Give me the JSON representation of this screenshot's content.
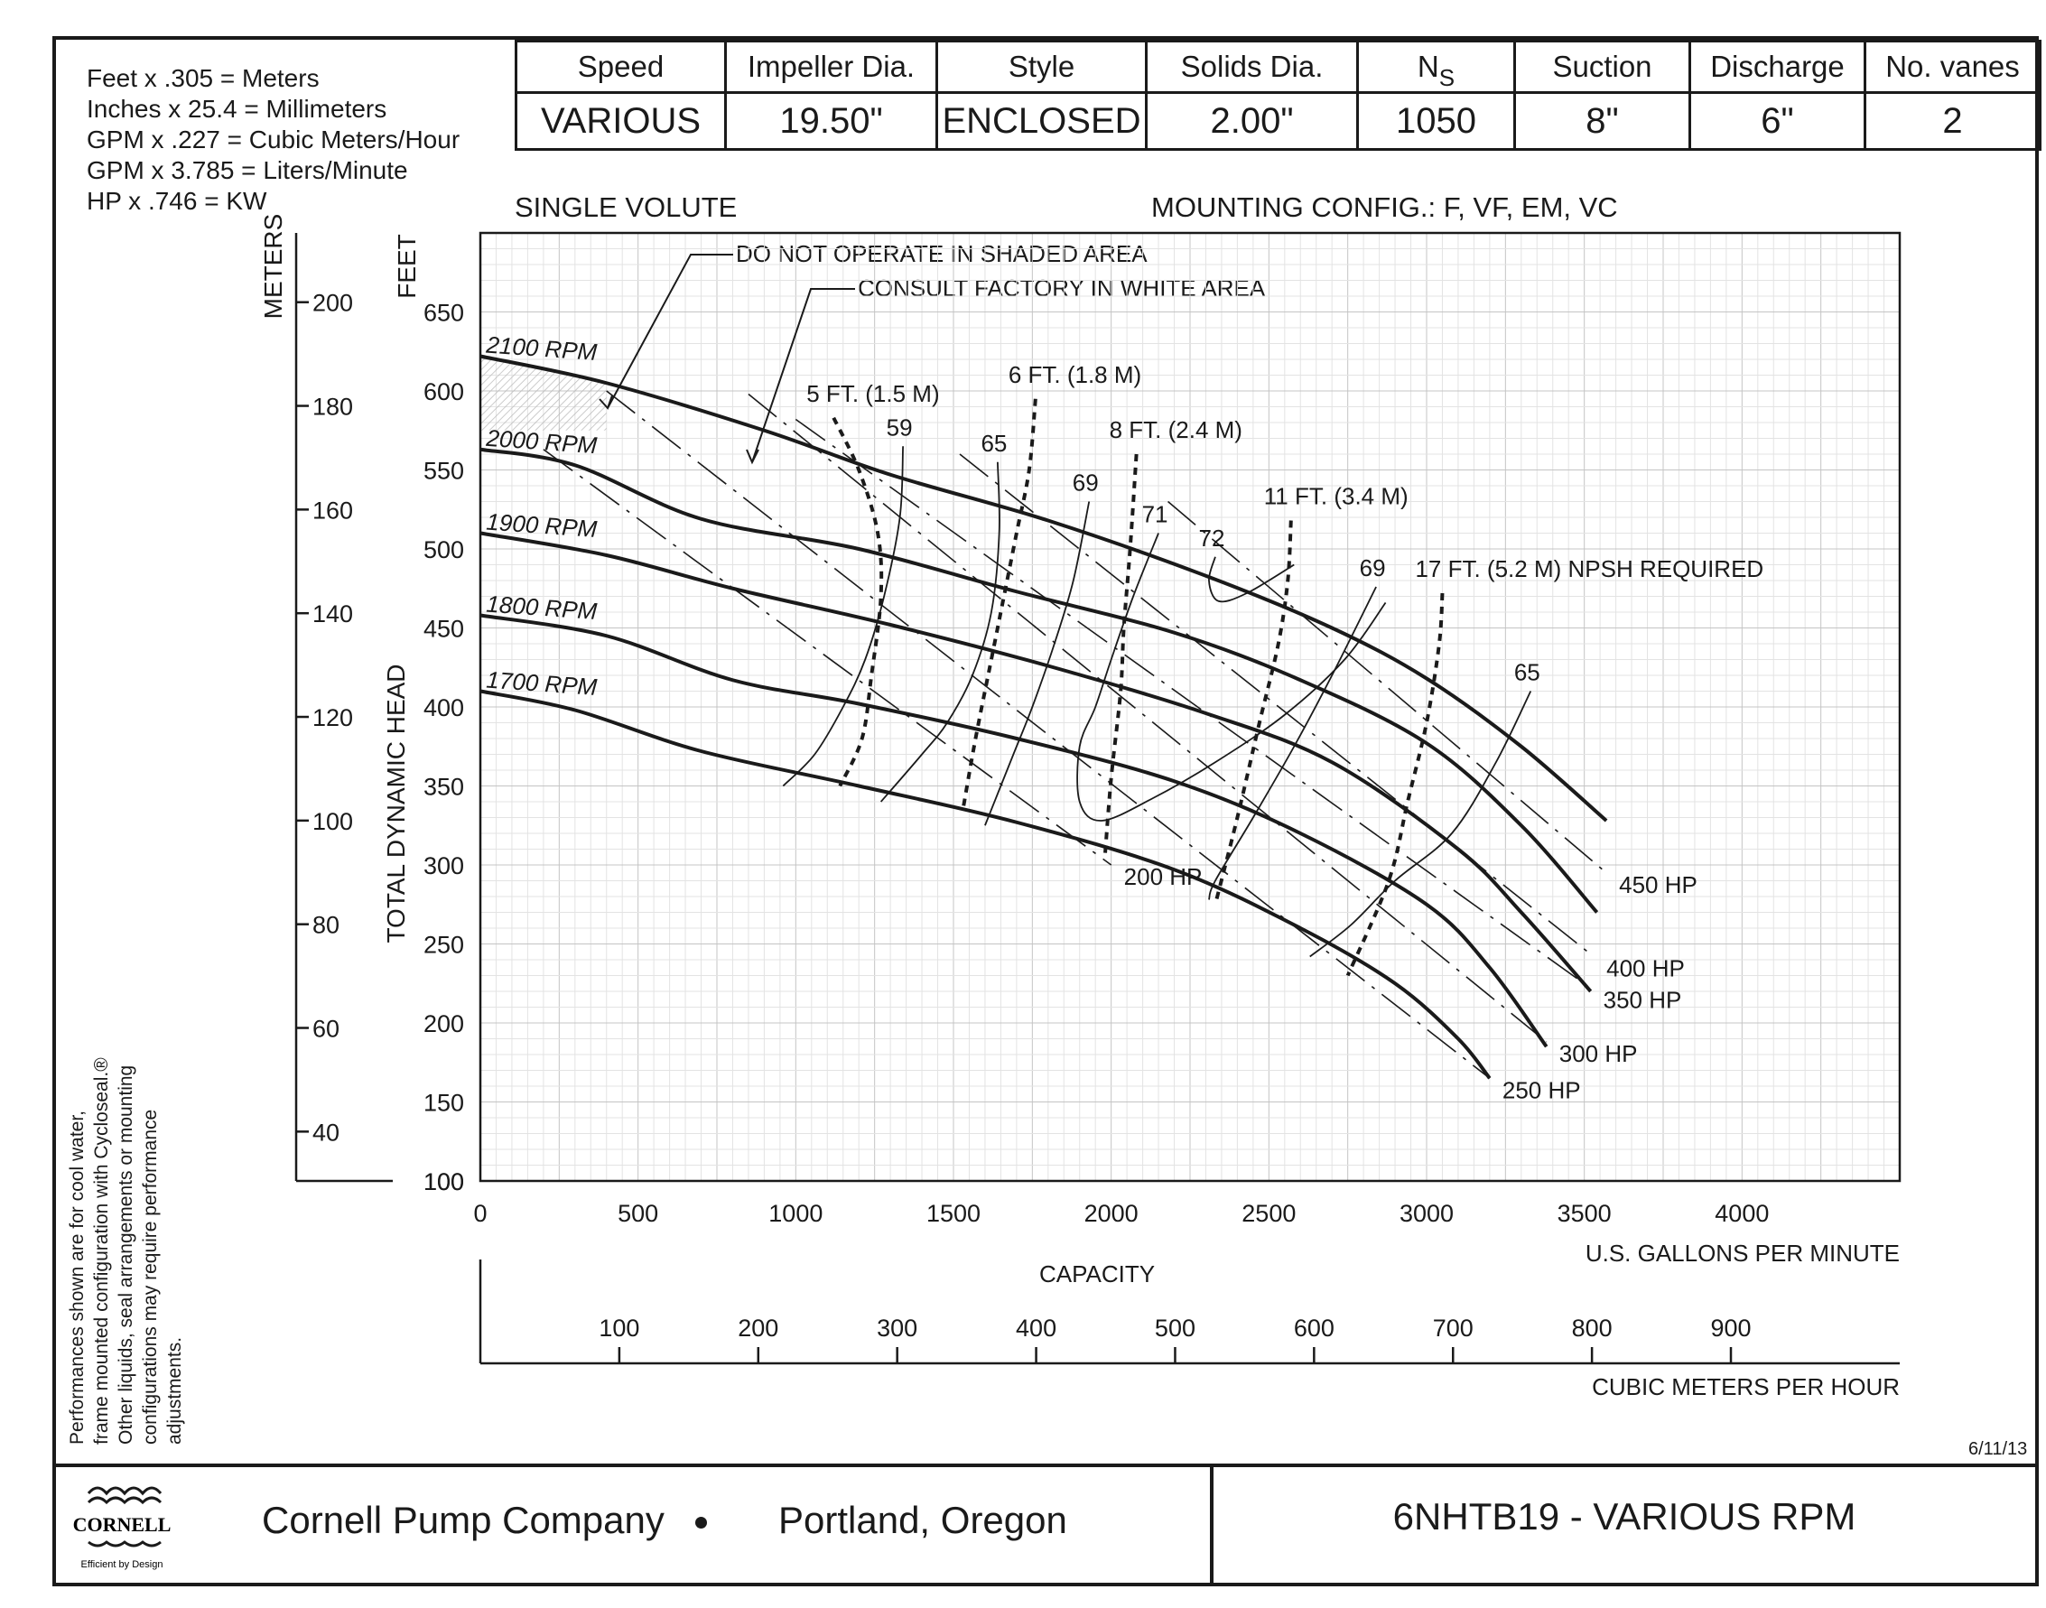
{
  "conversions": [
    "Feet x .305 = Meters",
    "Inches x 25.4 = Millimeters",
    "GPM x .227 = Cubic Meters/Hour",
    "GPM x 3.785 = Liters/Minute",
    "HP x .746 = KW"
  ],
  "specs": {
    "headers": [
      "Speed",
      "Impeller Dia.",
      "Style",
      "Solids Dia.",
      "N",
      "Suction",
      "Discharge",
      "No. vanes"
    ],
    "ns_subscript": "S",
    "values": [
      "VARIOUS",
      "19.50\"",
      "ENCLOSED",
      "2.00\"",
      "1050",
      "8\"",
      "6\"",
      "2"
    ]
  },
  "volute": "SINGLE VOLUTE",
  "mounting": "MOUNTING CONFIG.:   F,  VF,  EM,  VC",
  "note": [
    "Performances shown are for cool water,",
    "frame mounted configuration with Cycloseal.®",
    "Other liquids, seal arrangements or mounting",
    "configurations may require performance",
    "adjustments."
  ],
  "date": "6/11/13",
  "footer": {
    "company": "Cornell Pump Company",
    "place": "Portland, Oregon",
    "model": "6NHTB19 - VARIOUS RPM",
    "logo_text": "CORNELL",
    "logo_tagline": "Efficient by Design"
  },
  "chart_data": {
    "type": "line",
    "xlabel": "U.S. GALLONS PER MINUTE",
    "ylabel": "TOTAL DYNAMIC HEAD",
    "y_unit_feet": "FEET",
    "y_unit_meters": "METERS",
    "capacity_label": "CAPACITY",
    "x2label": "CUBIC METERS PER HOUR",
    "xlim": [
      0,
      4500
    ],
    "ylim": [
      100,
      700
    ],
    "x_ticks": [
      0,
      500,
      1000,
      1500,
      2000,
      2500,
      3000,
      3500,
      4000
    ],
    "y_ticks": [
      100,
      150,
      200,
      250,
      300,
      350,
      400,
      450,
      500,
      550,
      600,
      650
    ],
    "meter_ticks": [
      40,
      60,
      80,
      100,
      120,
      140,
      160,
      180,
      200
    ],
    "m3h_ticks": [
      100,
      200,
      300,
      400,
      500,
      600,
      700,
      800,
      900
    ],
    "grid": true,
    "annotations": [
      "DO NOT OPERATE IN SHADED AREA",
      "CONSULT FACTORY IN WHITE AREA"
    ],
    "speed_curves": [
      {
        "name": "2100 RPM",
        "x": [
          0,
          400,
          900,
          1300,
          1800,
          2300,
          2700,
          3000,
          3300,
          3570
        ],
        "y": [
          622,
          605,
          575,
          547,
          518,
          483,
          450,
          418,
          375,
          328
        ]
      },
      {
        "name": "2000 RPM",
        "x": [
          0,
          300,
          700,
          1200,
          1700,
          2200,
          2600,
          3000,
          3300,
          3540
        ],
        "y": [
          563,
          553,
          519,
          500,
          473,
          447,
          417,
          377,
          325,
          270
        ]
      },
      {
        "name": "1900 RPM",
        "x": [
          0,
          400,
          800,
          1300,
          1800,
          2300,
          2700,
          3100,
          3300,
          3520
        ],
        "y": [
          510,
          496,
          475,
          452,
          426,
          396,
          365,
          310,
          270,
          220
        ]
      },
      {
        "name": "1800 RPM",
        "x": [
          0,
          400,
          800,
          1200,
          1700,
          2200,
          2600,
          3000,
          3200,
          3380
        ],
        "y": [
          458,
          445,
          417,
          402,
          380,
          353,
          320,
          275,
          235,
          185
        ]
      },
      {
        "name": "1700 RPM",
        "x": [
          0,
          300,
          700,
          1200,
          1700,
          2200,
          2600,
          2900,
          3100,
          3200
        ],
        "y": [
          410,
          398,
          372,
          350,
          327,
          297,
          260,
          225,
          190,
          165
        ]
      }
    ],
    "npsh_curves": [
      {
        "name": "5 FT. (1.5 M)",
        "x": [
          1120,
          1200,
          1260,
          1270,
          1240,
          1210,
          1140
        ],
        "y": [
          583,
          550,
          510,
          470,
          420,
          380,
          350
        ]
      },
      {
        "name": "6 FT. (1.8 M)",
        "x": [
          1760,
          1740,
          1700,
          1660,
          1620,
          1570,
          1530
        ],
        "y": [
          595,
          550,
          510,
          470,
          430,
          380,
          335
        ]
      },
      {
        "name": "8 FT. (2.4 M)",
        "x": [
          2080,
          2060,
          2040,
          2030,
          2000,
          1980
        ],
        "y": [
          560,
          500,
          450,
          410,
          355,
          305
        ]
      },
      {
        "name": "11 FT. (3.4 M)",
        "x": [
          2570,
          2560,
          2530,
          2470,
          2400,
          2330
        ],
        "y": [
          518,
          480,
          440,
          390,
          330,
          275
        ]
      },
      {
        "name": "17 FT. (5.2 M) NPSH REQUIRED",
        "x": [
          3050,
          3040,
          3000,
          2940,
          2880,
          2750
        ],
        "y": [
          472,
          440,
          390,
          340,
          290,
          230
        ]
      }
    ],
    "efficiency_curves": [
      {
        "name": "59",
        "x": [
          1340,
          1330,
          1280,
          1220,
          1150,
          1060,
          960
        ],
        "y": [
          565,
          520,
          470,
          430,
          400,
          370,
          350
        ]
      },
      {
        "name": "65",
        "x": [
          1640,
          1645,
          1620,
          1560,
          1480,
          1400,
          1270
        ],
        "y": [
          555,
          510,
          460,
          420,
          390,
          370,
          340
        ]
      },
      {
        "name": "69",
        "x": [
          1930,
          1880,
          1820,
          1750,
          1690,
          1640,
          1600
        ],
        "y": [
          530,
          480,
          440,
          400,
          370,
          345,
          325
        ]
      },
      {
        "name": "71",
        "x": [
          2150,
          2070,
          2000,
          1950,
          1900,
          1900,
          1970,
          2130,
          2330,
          2550,
          2740,
          2870
        ],
        "y": [
          510,
          470,
          430,
          400,
          375,
          340,
          328,
          342,
          365,
          395,
          430,
          466
        ]
      },
      {
        "name": "72",
        "x": [
          2330,
          2310,
          2340,
          2430,
          2580
        ],
        "y": [
          495,
          480,
          467,
          472,
          490
        ]
      },
      {
        "name": "69",
        "x": [
          2840,
          2700,
          2580,
          2450,
          2330,
          2310
        ],
        "y": [
          476,
          420,
          375,
          330,
          290,
          278
        ]
      },
      {
        "name": "65",
        "x": [
          3330,
          3220,
          3080,
          2900,
          2760,
          2630
        ],
        "y": [
          410,
          365,
          320,
          290,
          262,
          242
        ]
      }
    ],
    "efficiency_label_positions_only": "labels drawn at curve tops",
    "hp_lines": [
      {
        "name": "200 HP",
        "x": [
          200,
          2000
        ],
        "y": [
          563,
          300
        ]
      },
      {
        "name": "250 HP",
        "x": [
          400,
          3200
        ],
        "y": [
          600,
          165
        ]
      },
      {
        "name": "300 HP",
        "x": [
          850,
          3380
        ],
        "y": [
          598,
          188
        ]
      },
      {
        "name": "350 HP",
        "x": [
          1000,
          3520
        ],
        "y": [
          582,
          222
        ]
      },
      {
        "name": "400 HP",
        "x": [
          1520,
          3530
        ],
        "y": [
          560,
          242
        ]
      },
      {
        "name": "450 HP",
        "x": [
          2180,
          3570
        ],
        "y": [
          530,
          295
        ]
      }
    ]
  }
}
